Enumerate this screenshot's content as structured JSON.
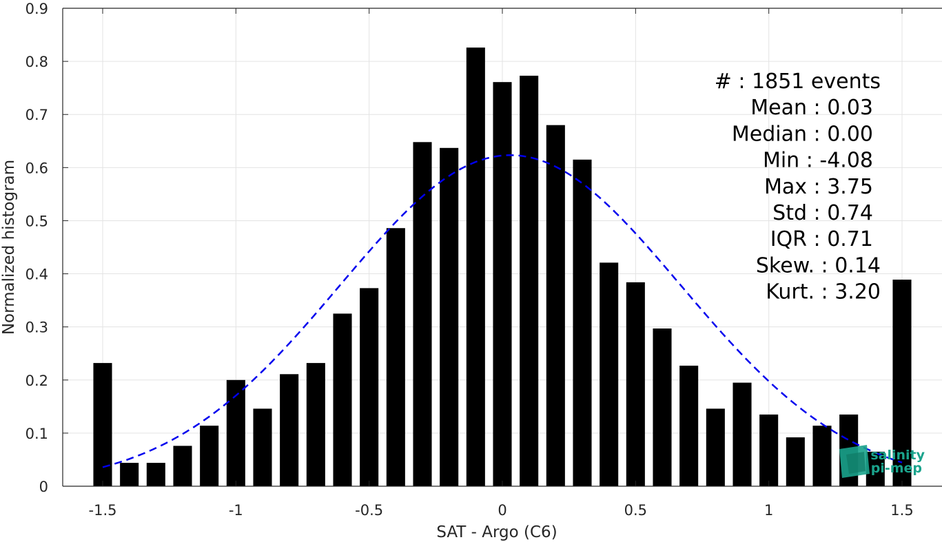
{
  "chart_data": {
    "type": "bar",
    "title": "",
    "xlabel": "SAT - Argo (C6)",
    "ylabel": "Normalized histogram",
    "xlim": [
      -1.65,
      1.65
    ],
    "ylim": [
      0,
      0.9
    ],
    "grid": true,
    "x_ticks": [
      -1.5,
      -1,
      -0.5,
      0,
      0.5,
      1,
      1.5
    ],
    "x_tick_labels": [
      "-1.5",
      "-1",
      "-0.5",
      "0",
      "0.5",
      "1",
      "1.5"
    ],
    "y_ticks": [
      0,
      0.1,
      0.2,
      0.3,
      0.4,
      0.5,
      0.6,
      0.7,
      0.8,
      0.9
    ],
    "y_tick_labels": [
      "0",
      "0.1",
      "0.2",
      "0.3",
      "0.4",
      "0.5",
      "0.6",
      "0.7",
      "0.8",
      "0.9"
    ],
    "bar_color": "#000000",
    "bar_width": 0.07,
    "x": [
      -1.5,
      -1.4,
      -1.3,
      -1.2,
      -1.1,
      -1.0,
      -0.9,
      -0.8,
      -0.7,
      -0.6,
      -0.5,
      -0.4,
      -0.3,
      -0.2,
      -0.1,
      0.0,
      0.1,
      0.2,
      0.3,
      0.4,
      0.5,
      0.6,
      0.7,
      0.8,
      0.9,
      1.0,
      1.1,
      1.2,
      1.3,
      1.4,
      1.5
    ],
    "values": [
      0.232,
      0.044,
      0.044,
      0.076,
      0.114,
      0.2,
      0.146,
      0.211,
      0.232,
      0.325,
      0.373,
      0.486,
      0.648,
      0.637,
      0.826,
      0.761,
      0.773,
      0.68,
      0.615,
      0.421,
      0.384,
      0.297,
      0.227,
      0.146,
      0.195,
      0.135,
      0.092,
      0.114,
      0.135,
      0.065,
      0.389
    ],
    "fit": {
      "type": "gaussian",
      "style": "dashed",
      "color": "#0000ee",
      "x_start": -1.5,
      "x_end": 1.5,
      "mean": 0.03,
      "std": 0.64
    },
    "stats": [
      "#  : 1851 events",
      "Mean : 0.03",
      "Median : 0.00",
      "Min : -4.08",
      "Max : 3.75",
      "Std : 0.74",
      "IQR : 0.71",
      "Skew. : 0.14",
      "Kurt. : 3.20"
    ]
  },
  "logo": {
    "line1": "salinity",
    "line2": "pi-mep",
    "color": "#1aa38c"
  }
}
